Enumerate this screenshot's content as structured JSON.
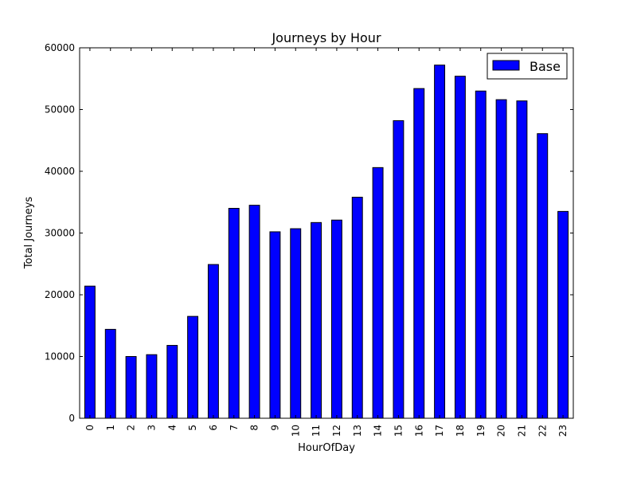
{
  "chart_data": {
    "type": "bar",
    "title": "Journeys by Hour",
    "xlabel": "HourOfDay",
    "ylabel": "Total Journeys",
    "categories": [
      "0",
      "1",
      "2",
      "3",
      "4",
      "5",
      "6",
      "7",
      "8",
      "9",
      "10",
      "11",
      "12",
      "13",
      "14",
      "15",
      "16",
      "17",
      "18",
      "19",
      "20",
      "21",
      "22",
      "23"
    ],
    "series": [
      {
        "name": "Base",
        "color": "#0000ff",
        "values": [
          21400,
          14400,
          10000,
          10300,
          11800,
          16500,
          24900,
          34000,
          34500,
          30200,
          30700,
          31700,
          32100,
          35800,
          40600,
          48200,
          53400,
          57200,
          55400,
          53000,
          51600,
          51400,
          46100,
          33500
        ]
      }
    ],
    "ylim": [
      0,
      60000
    ],
    "yticks": [
      0,
      10000,
      20000,
      30000,
      40000,
      50000,
      60000
    ],
    "grid": false,
    "legend_position": "top-right"
  }
}
